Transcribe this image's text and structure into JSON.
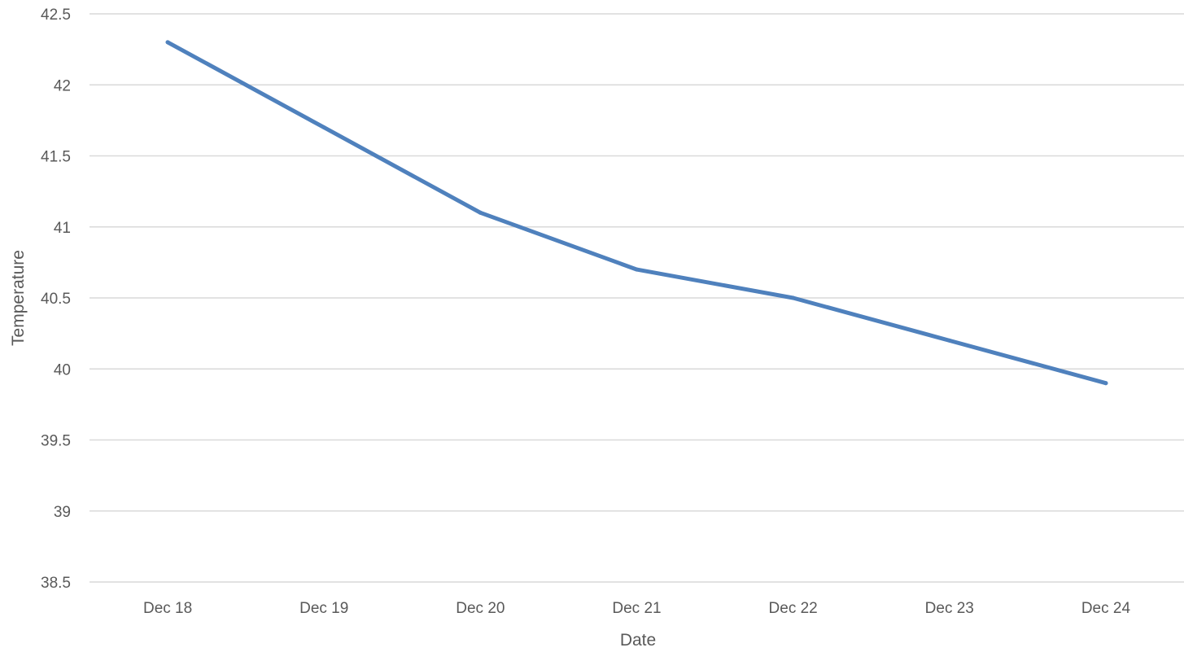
{
  "chart_data": {
    "type": "line",
    "categories": [
      "Dec 18",
      "Dec 19",
      "Dec 20",
      "Dec 21",
      "Dec 22",
      "Dec 23",
      "Dec 24"
    ],
    "series": [
      {
        "values": [
          42.3,
          41.7,
          41.1,
          40.7,
          40.5,
          40.2,
          39.9
        ],
        "color": "#4f81bd"
      }
    ],
    "y_ticks": [
      "38.5",
      "39",
      "39.5",
      "40",
      "40.5",
      "41",
      "41.5",
      "42",
      "42.5"
    ],
    "xlabel": "Date",
    "ylabel": "Temperature",
    "ylim": [
      38.5,
      42.5
    ],
    "grid": true,
    "legend": "none"
  }
}
